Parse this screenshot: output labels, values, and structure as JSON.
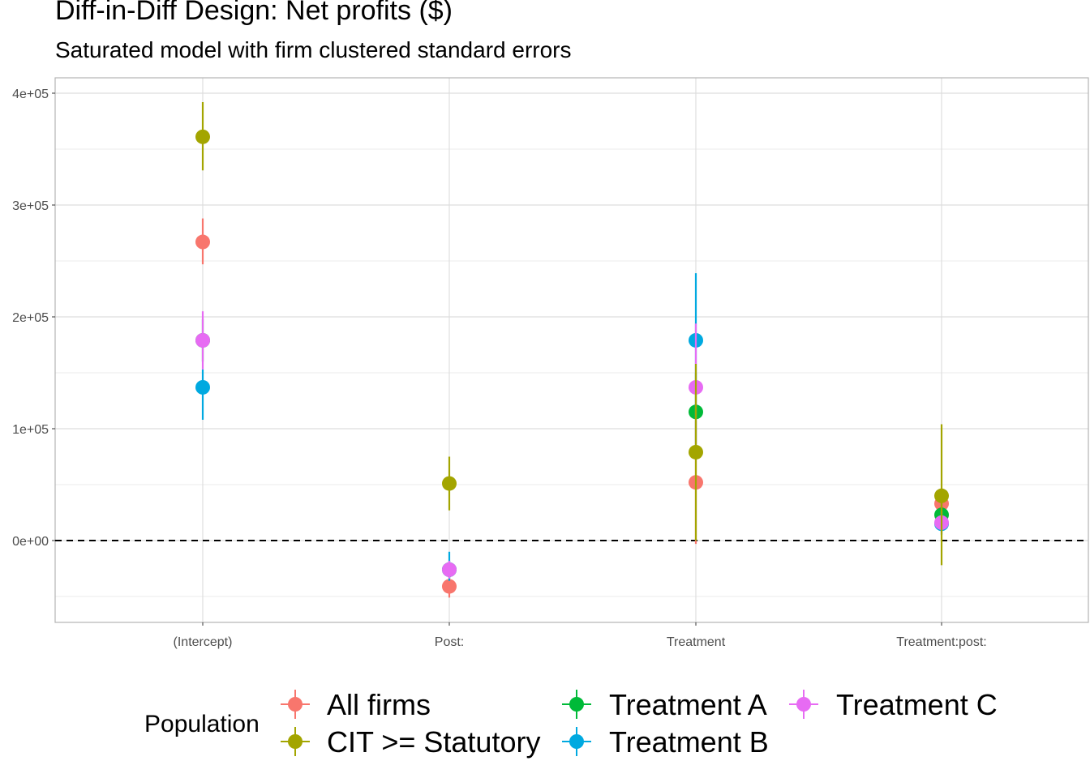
{
  "title": "Diff-in-Diff Design: Net profits  ($)",
  "subtitle": "Saturated model with firm clustered standard errors",
  "chart_data": {
    "type": "scatter",
    "categories": [
      "(Intercept)",
      "Post:",
      "Treatment",
      "Treatment:post:"
    ],
    "yticks": [
      {
        "value": 0,
        "label": "0e+00"
      },
      {
        "value": 100000,
        "label": "1e+05"
      },
      {
        "value": 200000,
        "label": "2e+05"
      },
      {
        "value": 300000,
        "label": "3e+05"
      },
      {
        "value": 400000,
        "label": "4e+05"
      }
    ],
    "ylim": [
      -73000,
      413000
    ],
    "reference_line": {
      "y": 0,
      "style": "dashed"
    },
    "grid": true,
    "legend": {
      "title": "Population",
      "position": "bottom"
    },
    "series": [
      {
        "name": "All firms",
        "color": "#F8766D",
        "points": [
          {
            "x": "(Intercept)",
            "y": 267000,
            "ymin": 247000,
            "ymax": 288000
          },
          {
            "x": "Post:",
            "y": -41000,
            "ymin": -51000,
            "ymax": -31000
          },
          {
            "x": "Treatment",
            "y": 52000,
            "ymin": -3000,
            "ymax": 107000
          },
          {
            "x": "Treatment:post:",
            "y": 33000,
            "ymin": 20000,
            "ymax": 46000
          }
        ]
      },
      {
        "name": "Treatment A",
        "color": "#00BA38",
        "points": [
          {
            "x": "(Intercept)",
            "y": 179000,
            "ymin": 160000,
            "ymax": 198000
          },
          {
            "x": "Post:",
            "y": -26000,
            "ymin": -34000,
            "ymax": -18000
          },
          {
            "x": "Treatment",
            "y": 115000,
            "ymin": 80000,
            "ymax": 150000
          },
          {
            "x": "Treatment:post:",
            "y": 23000,
            "ymin": 10000,
            "ymax": 36000
          }
        ]
      },
      {
        "name": "Treatment B",
        "color": "#00A9E0",
        "points": [
          {
            "x": "(Intercept)",
            "y": 137000,
            "ymin": 108000,
            "ymax": 153000
          },
          {
            "x": "Post:",
            "y": -26000,
            "ymin": -36000,
            "ymax": -10000
          },
          {
            "x": "Treatment",
            "y": 179000,
            "ymin": 120000,
            "ymax": 239000
          },
          {
            "x": "Treatment:post:",
            "y": 15000,
            "ymin": 5000,
            "ymax": 25000
          }
        ]
      },
      {
        "name": "Treatment C",
        "color": "#E76BF3",
        "points": [
          {
            "x": "(Intercept)",
            "y": 179000,
            "ymin": 153000,
            "ymax": 205000
          },
          {
            "x": "Post:",
            "y": -26000,
            "ymin": -34000,
            "ymax": -18000
          },
          {
            "x": "Treatment",
            "y": 137000,
            "ymin": 80000,
            "ymax": 194000
          },
          {
            "x": "Treatment:post:",
            "y": 16000,
            "ymin": 6000,
            "ymax": 26000
          }
        ]
      },
      {
        "name": "CIT >= Statutory",
        "color": "#A3A500",
        "points": [
          {
            "x": "(Intercept)",
            "y": 361000,
            "ymin": 331000,
            "ymax": 392000
          },
          {
            "x": "Post:",
            "y": 51000,
            "ymin": 27000,
            "ymax": 75000
          },
          {
            "x": "Treatment",
            "y": 79000,
            "ymin": 0,
            "ymax": 158000
          },
          {
            "x": "Treatment:post:",
            "y": 40000,
            "ymin": -22000,
            "ymax": 104000
          }
        ]
      }
    ],
    "legend_entries": [
      {
        "label": "All firms",
        "color": "#F8766D"
      },
      {
        "label": "CIT >= Statutory",
        "color": "#A3A500"
      },
      {
        "label": "Treatment A",
        "color": "#00BA38"
      },
      {
        "label": "Treatment B",
        "color": "#00A9E0"
      },
      {
        "label": "Treatment C",
        "color": "#E76BF3"
      }
    ]
  }
}
